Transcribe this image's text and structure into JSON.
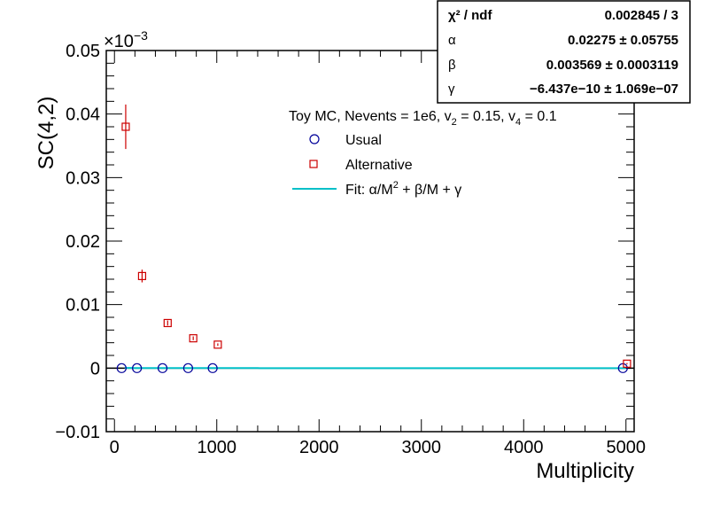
{
  "chart_data": {
    "type": "scatter",
    "xlabel": "Multiplicity",
    "ylabel": "SC(4,2)",
    "y_exponent": "×10",
    "y_exponent_power": "−3",
    "xlim": [
      -80,
      5080
    ],
    "ylim": [
      -0.01,
      0.05
    ],
    "x_ticks": [
      0,
      1000,
      2000,
      3000,
      4000,
      5000
    ],
    "x_tick_labels": [
      "0",
      "1000",
      "2000",
      "3000",
      "4000",
      "5000"
    ],
    "y_ticks": [
      -0.01,
      0,
      0.01,
      0.02,
      0.03,
      0.04,
      0.05
    ],
    "y_tick_labels": [
      "−0.01",
      "0",
      "0.01",
      "0.02",
      "0.03",
      "0.04",
      "0.05"
    ],
    "grid": false,
    "legend": {
      "header": "Toy MC, Nevents = 1e6, v",
      "header_sub1": "2",
      "header_mid": " = 0.15, v",
      "header_sub2": "4",
      "header_end": " = 0.1",
      "entries": [
        {
          "label": "Usual",
          "marker": "circle",
          "color": "#000099"
        },
        {
          "label": "Alternative",
          "marker": "square",
          "color": "#cc0000"
        },
        {
          "label_pre": "Fit: α/M",
          "label_sup": "2",
          "label_post": " + β/M + γ",
          "marker": "line",
          "color": "#00c0c8"
        }
      ]
    },
    "series": [
      {
        "name": "Usual",
        "marker": "circle",
        "color": "#000099",
        "x": [
          70,
          220,
          470,
          720,
          960,
          4970
        ],
        "y": [
          0.0,
          0.0,
          0.0,
          0.0,
          0.0,
          0.0
        ]
      },
      {
        "name": "Alternative",
        "marker": "square",
        "color": "#cc0000",
        "x": [
          110,
          270,
          520,
          770,
          1010,
          5010
        ],
        "y": [
          0.038,
          0.0145,
          0.0071,
          0.0047,
          0.0037,
          0.0007
        ],
        "yerr": [
          0.0035,
          0.001,
          0.0004,
          0.0003,
          0.0002,
          0.0001
        ]
      },
      {
        "name": "Fit: α/M² + β/M + γ",
        "type": "line",
        "color": "#00c0c8",
        "params": {
          "alpha": 0.02275,
          "beta": 0.003569,
          "gamma": -6.437e-10
        },
        "x_range": [
          100,
          5000
        ]
      }
    ],
    "stats_box": {
      "rows": [
        {
          "label": "χ² / ndf",
          "value": "0.002845 / 3"
        },
        {
          "label": "α",
          "value": "0.02275 ± 0.05755"
        },
        {
          "label": "β",
          "value": "0.003569 ± 0.0003119"
        },
        {
          "label": "γ",
          "value": "−6.437e−10 ± 1.069e−07"
        }
      ]
    }
  }
}
